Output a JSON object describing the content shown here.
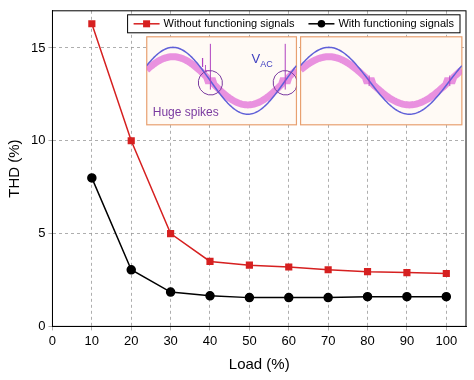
{
  "chart_data": {
    "type": "line",
    "x_label": "Load (%)",
    "y_label": "THD (%)",
    "x": [
      10,
      20,
      30,
      40,
      50,
      60,
      70,
      80,
      90,
      100
    ],
    "series": [
      {
        "name": "Without functioning signals",
        "color": "#d62020",
        "marker": "square",
        "values": [
          16.3,
          10.0,
          5.0,
          3.5,
          3.3,
          3.2,
          3.05,
          2.95,
          2.9,
          2.85
        ]
      },
      {
        "name": "With functioning signals",
        "color": "#000000",
        "marker": "circle",
        "values": [
          8.0,
          3.05,
          1.85,
          1.65,
          1.55,
          1.55,
          1.55,
          1.6,
          1.6,
          1.6
        ]
      }
    ],
    "xlim": [
      0,
      105
    ],
    "xticks": [
      0,
      10,
      20,
      30,
      40,
      50,
      60,
      70,
      80,
      90,
      100
    ],
    "ylim": [
      0,
      17
    ],
    "yticks": [
      0,
      5,
      10,
      15
    ],
    "grid": true,
    "legend": "top",
    "annotations": [
      "IL",
      "VAC",
      "Huge spikes"
    ]
  }
}
